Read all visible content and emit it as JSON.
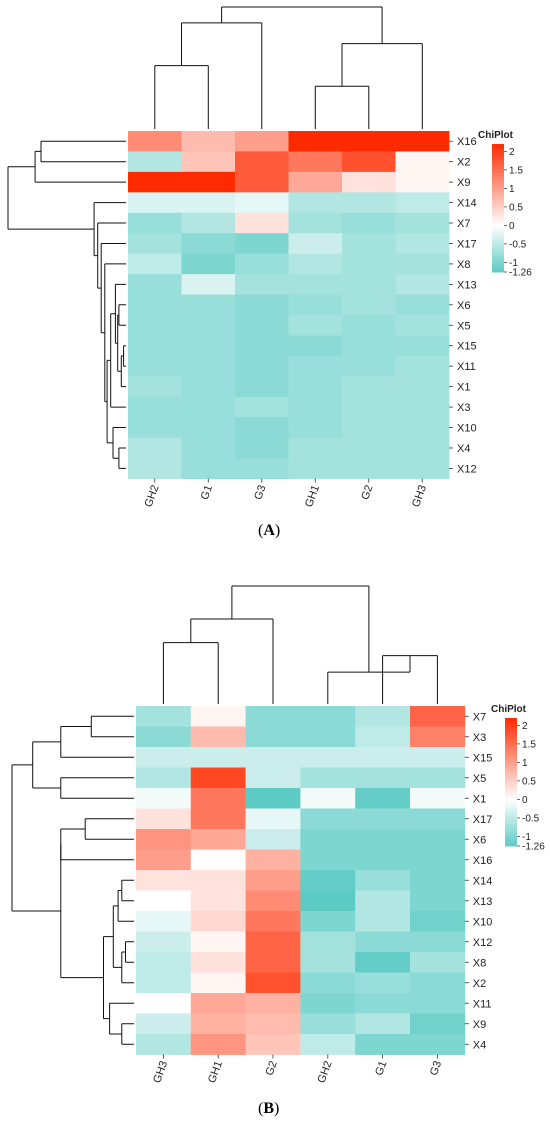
{
  "chart_data": [
    {
      "type": "heatmap",
      "panel": "A",
      "legend_title": "ChiPlot",
      "legend_ticks": [
        "2",
        "1.5",
        "1",
        "0.5",
        "0",
        "-0.5",
        "-1",
        "-1.26"
      ],
      "legend_range": [
        -1.26,
        2.2
      ],
      "legend_placement": "right",
      "columns": [
        "GH2",
        "G1",
        "G3",
        "GH1",
        "G2",
        "GH3"
      ],
      "rows": [
        "X16",
        "X2",
        "X9",
        "X14",
        "X7",
        "X17",
        "X8",
        "X13",
        "X6",
        "X5",
        "X15",
        "X11",
        "X1",
        "X3",
        "X10",
        "X4",
        "X12"
      ],
      "values": [
        [
          1.2,
          0.7,
          1.0,
          2.4,
          2.4,
          2.8
        ],
        [
          -0.6,
          0.6,
          1.7,
          1.4,
          1.8,
          0.1
        ],
        [
          2.6,
          2.8,
          1.7,
          0.9,
          0.3,
          0.1
        ],
        [
          -0.3,
          -0.3,
          -0.2,
          -0.6,
          -0.6,
          -0.5
        ],
        [
          -0.8,
          -0.6,
          0.3,
          -0.7,
          -0.8,
          -0.7
        ],
        [
          -0.7,
          -0.9,
          -1.0,
          -0.4,
          -0.7,
          -0.6
        ],
        [
          -0.5,
          -1.0,
          -0.8,
          -0.6,
          -0.7,
          -0.7
        ],
        [
          -0.8,
          -0.3,
          -0.7,
          -0.7,
          -0.7,
          -0.6
        ],
        [
          -0.8,
          -0.8,
          -0.9,
          -0.8,
          -0.7,
          -0.8
        ],
        [
          -0.8,
          -0.8,
          -0.9,
          -0.7,
          -0.8,
          -0.7
        ],
        [
          -0.8,
          -0.8,
          -0.9,
          -0.9,
          -0.8,
          -0.8
        ],
        [
          -0.8,
          -0.8,
          -0.9,
          -0.8,
          -0.8,
          -0.7
        ],
        [
          -0.7,
          -0.8,
          -0.9,
          -0.8,
          -0.7,
          -0.7
        ],
        [
          -0.8,
          -0.8,
          -0.7,
          -0.8,
          -0.7,
          -0.7
        ],
        [
          -0.8,
          -0.8,
          -0.9,
          -0.8,
          -0.7,
          -0.7
        ],
        [
          -0.6,
          -0.8,
          -0.9,
          -0.7,
          -0.7,
          -0.7
        ],
        [
          -0.6,
          -0.8,
          -0.8,
          -0.7,
          -0.7,
          -0.7
        ]
      ],
      "row_dendrogram": {
        "leaves": [
          "X16",
          "X2",
          "X9",
          "X14",
          "X7",
          "X17",
          "X8",
          "X13",
          "X6",
          "X5",
          "X15",
          "X11",
          "X1",
          "X3",
          "X10",
          "X4",
          "X12"
        ],
        "merges": [
          [
            0,
            1,
            0.72
          ],
          [
            -1,
            2,
            0.77
          ],
          [
            10,
            11,
            0.02
          ],
          [
            -3,
            12,
            0.04
          ],
          [
            8,
            9,
            0.06
          ],
          [
            -5,
            -4,
            0.07
          ],
          [
            7,
            -6,
            0.09
          ],
          [
            15,
            16,
            0.06
          ],
          [
            14,
            -8,
            0.11
          ],
          [
            -7,
            13,
            0.13
          ],
          [
            -10,
            -9,
            0.16
          ],
          [
            6,
            -11,
            0.18
          ],
          [
            5,
            -12,
            0.21
          ],
          [
            4,
            -13,
            0.24
          ],
          [
            3,
            -14,
            0.27
          ],
          [
            -2,
            -15,
            1.0
          ]
        ]
      },
      "col_dendrogram": {
        "leaves": [
          "GH2",
          "G1",
          "G3",
          "GH1",
          "G2",
          "GH3"
        ],
        "merges": [
          [
            0,
            1,
            0.52
          ],
          [
            3,
            4,
            0.35
          ],
          [
            -2,
            5,
            0.7
          ],
          [
            -1,
            2,
            0.87
          ],
          [
            -4,
            -3,
            1.0
          ]
        ]
      }
    },
    {
      "type": "heatmap",
      "panel": "B",
      "legend_title": "ChiPlot",
      "legend_ticks": [
        "2",
        "1.5",
        "1",
        "0.5",
        "0",
        "-0.5",
        "-1",
        "-1.26"
      ],
      "legend_range": [
        -1.26,
        2.2
      ],
      "legend_placement": "right",
      "columns": [
        "GH3",
        "GH1",
        "G2",
        "GH2",
        "G1",
        "G3"
      ],
      "rows": [
        "X7",
        "X3",
        "X15",
        "X5",
        "X1",
        "X17",
        "X6",
        "X16",
        "X14",
        "X13",
        "X10",
        "X12",
        "X8",
        "X2",
        "X11",
        "X9",
        "X4"
      ],
      "values": [
        [
          -0.7,
          0.1,
          -0.9,
          -0.9,
          -0.6,
          1.6
        ],
        [
          -0.9,
          0.7,
          -0.9,
          -0.9,
          -0.5,
          1.3
        ],
        [
          -0.4,
          -0.4,
          -0.4,
          -0.4,
          -0.4,
          -0.4
        ],
        [
          -0.6,
          1.9,
          -0.4,
          -0.7,
          -0.7,
          -0.7
        ],
        [
          -0.1,
          1.4,
          -1.26,
          -0.1,
          -1.2,
          -0.1
        ],
        [
          0.3,
          1.4,
          -0.2,
          -0.9,
          -0.9,
          -0.9
        ],
        [
          1.1,
          0.9,
          -0.4,
          -1.0,
          -1.0,
          -1.0
        ],
        [
          1.0,
          0.0,
          0.8,
          -1.0,
          -1.0,
          -1.0
        ],
        [
          0.3,
          0.3,
          1.0,
          -1.2,
          -0.8,
          -1.0
        ],
        [
          0.0,
          0.3,
          1.2,
          -1.26,
          -0.6,
          -1.0
        ],
        [
          -0.2,
          0.4,
          1.4,
          -1.0,
          -0.6,
          -1.1
        ],
        [
          -0.4,
          0.1,
          1.6,
          -0.7,
          -0.9,
          -0.9
        ],
        [
          -0.5,
          0.3,
          1.6,
          -0.7,
          -1.2,
          -0.7
        ],
        [
          -0.5,
          0.1,
          1.8,
          -0.9,
          -0.8,
          -0.9
        ],
        [
          0.0,
          0.9,
          0.8,
          -1.0,
          -0.9,
          -0.9
        ],
        [
          -0.4,
          0.8,
          0.7,
          -0.8,
          -0.6,
          -1.1
        ],
        [
          -0.6,
          1.1,
          0.6,
          -0.5,
          -1.0,
          -1.0
        ]
      ],
      "row_dendrogram": {
        "leaves": [
          "X7",
          "X3",
          "X15",
          "X5",
          "X1",
          "X17",
          "X6",
          "X16",
          "X14",
          "X13",
          "X10",
          "X12",
          "X8",
          "X2",
          "X11",
          "X9",
          "X4"
        ],
        "merges": [
          [
            0,
            1,
            0.35
          ],
          [
            -1,
            2,
            0.6
          ],
          [
            3,
            4,
            0.6
          ],
          [
            -2,
            -3,
            0.83
          ],
          [
            5,
            6,
            0.4
          ],
          [
            -5,
            7,
            0.6
          ],
          [
            8,
            9,
            0.1
          ],
          [
            -7,
            10,
            0.13
          ],
          [
            11,
            12,
            0.07
          ],
          [
            -9,
            13,
            0.1
          ],
          [
            -8,
            -10,
            0.17
          ],
          [
            15,
            16,
            0.1
          ],
          [
            14,
            -12,
            0.2
          ],
          [
            -11,
            -13,
            0.25
          ],
          [
            -6,
            -14,
            0.6
          ],
          [
            -4,
            -15,
            1.0
          ]
        ]
      },
      "col_dendrogram": {
        "leaves": [
          "GH3",
          "GH1",
          "G2",
          "GH2",
          "G1",
          "G3"
        ],
        "merges": [
          [
            0,
            1,
            0.52
          ],
          [
            -1,
            2,
            0.72
          ],
          [
            4,
            5,
            0.41
          ],
          [
            3,
            -3,
            0.27
          ],
          [
            -2,
            -4,
            1.0
          ]
        ]
      }
    }
  ],
  "captions": {
    "a": "A",
    "b": "B"
  },
  "colors": {
    "low": "#5ccbc4",
    "mid": "#ffffff",
    "high": "#ff2a00"
  }
}
